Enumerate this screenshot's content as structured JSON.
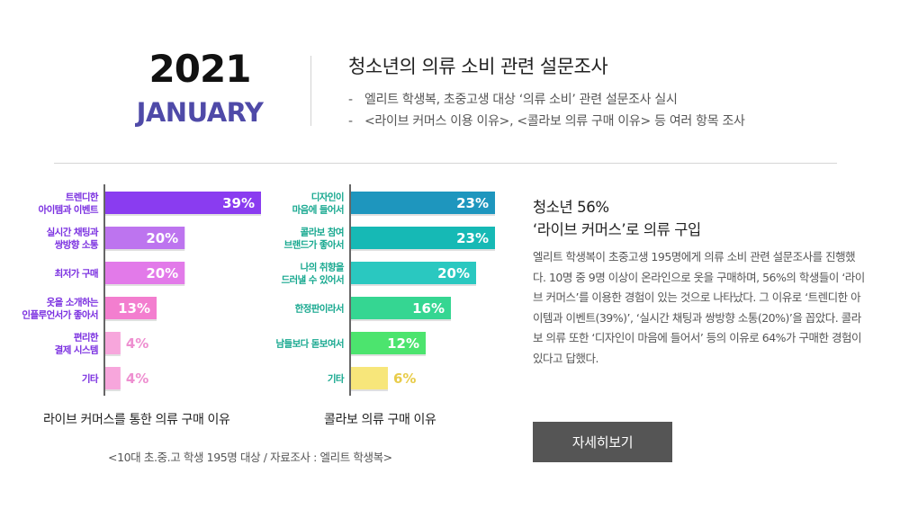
{
  "header": {
    "year": "2021",
    "month": "JANUARY",
    "survey_title": "청소년의 의류 소비 관련 설문조사",
    "survey_lines": [
      "엘리트 학생복, 초중고생 대상 ‘의류 소비’ 관련 설문조사 실시",
      "<라이브 커머스 이용 이유>, <콜라보 의류 구매 이유> 등 여러 항목 조사"
    ]
  },
  "chart_data": [
    {
      "type": "bar",
      "orientation": "horizontal",
      "title": "라이브 커머스를 통한 의류 구매 이유",
      "categories": [
        [
          "트렌디한",
          "아이템과 이벤트"
        ],
        [
          "실시간 채팅과",
          "쌍방향 소통"
        ],
        [
          "최저가 구매"
        ],
        [
          "옷을 소개하는",
          "인플루언서가 좋아서"
        ],
        [
          "편리한",
          "결제 시스템"
        ],
        [
          "기타"
        ]
      ],
      "values": [
        39,
        20,
        20,
        13,
        4,
        4
      ],
      "value_labels": [
        "39%",
        "20%",
        "20%",
        "13%",
        "4%",
        "4%"
      ],
      "colors": [
        "#8a3cf0",
        "#bd74ef",
        "#e27ae9",
        "#f37ecf",
        "#f7a6dc",
        "#f7a6dc"
      ],
      "xlim": [
        0,
        39
      ]
    },
    {
      "type": "bar",
      "orientation": "horizontal",
      "title": "콜라보 의류 구매 이유",
      "categories": [
        [
          "디자인이",
          "마음에 들어서"
        ],
        [
          "콜라보 참여",
          "브랜드가 좋아서"
        ],
        [
          "나의 취향을",
          "드러낼 수 있어서"
        ],
        [
          "한정판이라서"
        ],
        [
          "남들보다 돋보여서"
        ],
        [
          "기타"
        ]
      ],
      "values": [
        23,
        23,
        20,
        16,
        12,
        6
      ],
      "value_labels": [
        "23%",
        "23%",
        "20%",
        "16%",
        "12%",
        "6%"
      ],
      "colors": [
        "#1e96be",
        "#16b9b5",
        "#2ac8c0",
        "#35d692",
        "#4ce46e",
        "#f7e67a"
      ],
      "xlim": [
        0,
        23
      ]
    }
  ],
  "source_note": "<10대 초.중.고 학생 195명 대상 / 자료조사 : 엘리트 학생복>",
  "panel": {
    "headline_1": "청소년 56%",
    "headline_2": "‘라이브 커머스’로 의류 구입",
    "body": "엘리트 학생복이 초중고생 195명에게 의류 소비 관련 설문조사를 진행했다. 10명 중 9명 이상이 온라인으로 옷을 구매하며, 56%의 학생들이 ‘라이브 커머스’를 이용한 경험이 있는 것으로 나타났다. 그 이유로 ‘트렌디한 아이템과 이벤트(39%)’, ‘실시간 채팅과 쌍방향 소통(20%)’을 꼽았다. 콜라보 의류 또한 ‘디자인이 마음에 들어서’ 등의 이유로 64%가 구매한 경험이 있다고 답했다.",
    "button_label": "자세히보기"
  }
}
